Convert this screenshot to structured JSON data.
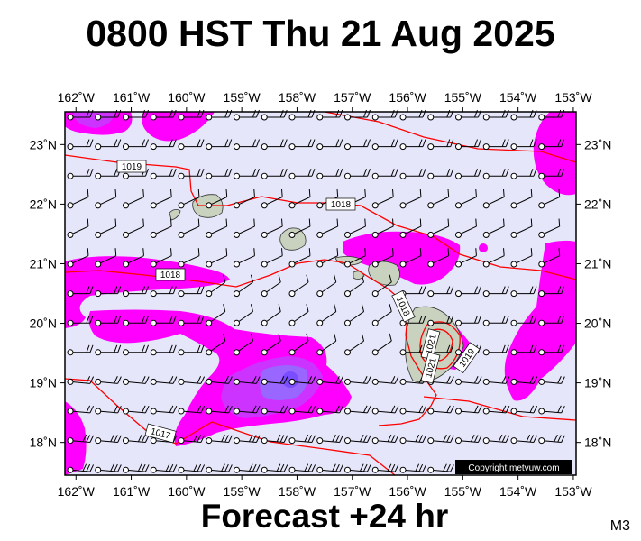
{
  "title": "0800 HST Thu 21 Aug 2025",
  "forecast_label": "Forecast +24 hr",
  "product_code": "M3",
  "copyright": "Copyright metvuw.com",
  "map": {
    "lon_range": [
      -162.2,
      -152.95
    ],
    "lat_range": [
      17.45,
      23.55
    ],
    "lon_labels": [
      "162˚W",
      "161˚W",
      "160˚W",
      "159˚W",
      "158˚W",
      "157˚W",
      "156˚W",
      "155˚W",
      "154˚W",
      "153˚W"
    ],
    "lat_labels": [
      "23˚N",
      "22˚N",
      "21˚N",
      "20˚N",
      "19˚N",
      "18˚N"
    ],
    "isobar_labels": [
      "1019",
      "1018",
      "1018",
      "1018",
      "1017",
      "1021",
      "1021",
      "1019"
    ],
    "colors": {
      "background": "#e6e6fa",
      "rain_light": "#ff00ff",
      "rain_medium": "#cc33ff",
      "rain_heavy": "#9966ff",
      "isobar": "#ff0000",
      "land": "#c8d2be"
    }
  }
}
